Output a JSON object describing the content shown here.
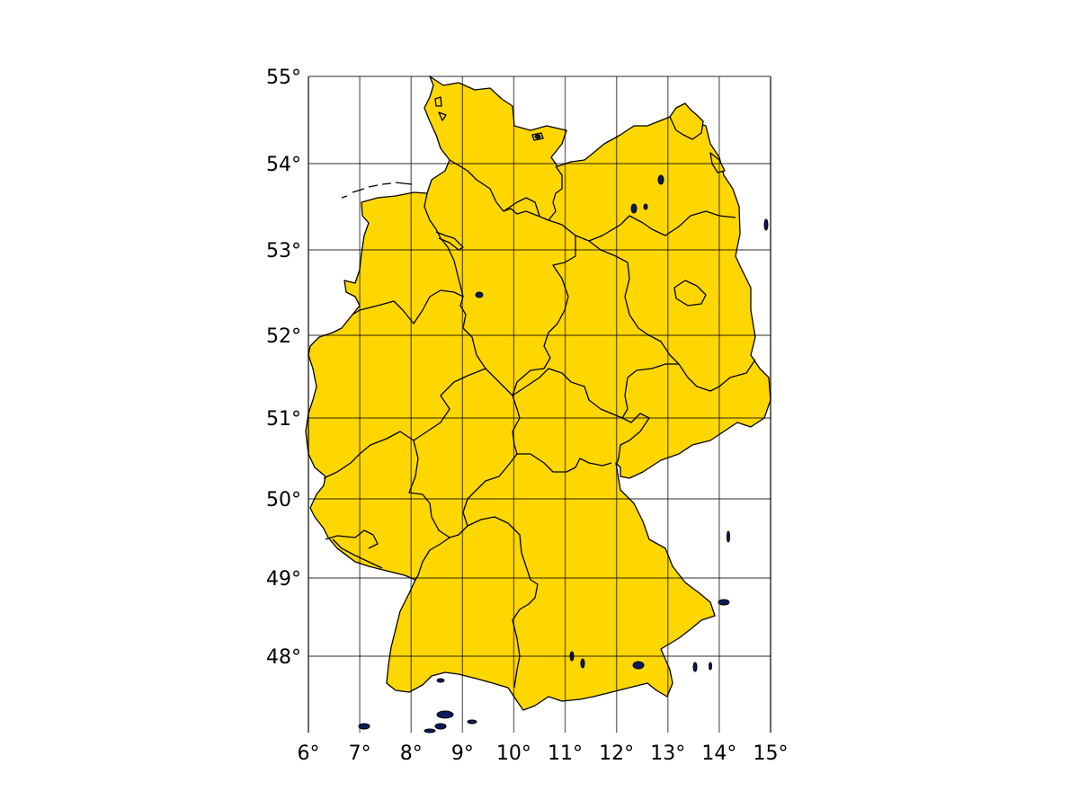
{
  "map": {
    "fill_color": "#FFD700",
    "lake_color": "#0b1a5c",
    "longitude_ticks": [
      "6°",
      "7°",
      "8°",
      "9°",
      "10°",
      "11°",
      "12°",
      "13°",
      "14°",
      "15°"
    ],
    "latitude_ticks": [
      "48°",
      "49°",
      "50°",
      "51°",
      "52°",
      "53°",
      "54°",
      "55°"
    ],
    "lon_range": [
      6,
      15
    ],
    "lat_range": [
      47.3,
      55
    ]
  }
}
